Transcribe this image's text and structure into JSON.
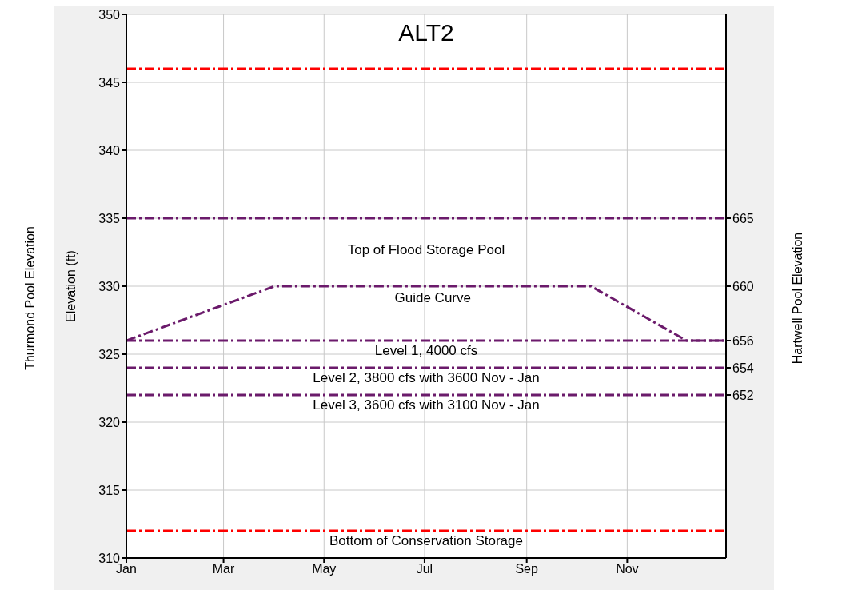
{
  "chart_data": {
    "type": "line",
    "title": "ALT2",
    "ylabel": "Elevation (ft)",
    "y2label": "Hartwell Pool Elevation",
    "annotations": [
      "Top of Flood Storage Pool",
      "Thurmond Pool Elevation"
    ],
    "series": [
      {
        "name": "Guide Curve",
        "color": "#6b1a6b",
        "x": [
          "--01-01",
          "--04-01",
          "--10-10",
          "--12-07",
          "--12-31"
        ],
        "values": [
          326,
          330,
          330,
          326,
          326
        ]
      }
    ],
    "xlim": [
      "--01-01",
      "--12-31"
    ],
    "xticks": [
      {
        "value": "--01-01",
        "label": "Jan"
      },
      {
        "value": "--03-01",
        "label": "Mar"
      },
      {
        "value": "--05-01",
        "label": "May"
      },
      {
        "value": "--07-01",
        "label": "Jul"
      },
      {
        "value": "--09-01",
        "label": "Sep"
      },
      {
        "value": "--11-01",
        "label": "Nov"
      }
    ],
    "ylim": [
      310,
      350
    ],
    "yticks": [
      310,
      315,
      320,
      325,
      330,
      335,
      340,
      345,
      350
    ],
    "y2lim": [
      640,
      680
    ],
    "y2ticks": [
      652,
      654,
      656,
      660,
      665
    ],
    "ref_lines": [
      {
        "axis": "y",
        "value": 346,
        "color": "#ff0000",
        "line_style": "dashed"
      },
      {
        "axis": "y",
        "value": 335,
        "color": "#6b1a6b",
        "line_style": "dashed"
      },
      {
        "axis": "y",
        "value": 326,
        "label": "Level 1, 4000 cfs",
        "color": "#6c1a6c",
        "line_style": "dashed"
      },
      {
        "axis": "y",
        "value": 324,
        "label": "Level 2, 3800 cfs with 3600 Nov - Jan",
        "color": "#6a1a6a",
        "line_style": "dashed"
      },
      {
        "axis": "y",
        "value": 322,
        "label": "Level 3, 3600 cfs with 3100 Nov - Jan",
        "color": "#6b1b6b",
        "line_style": "dashed"
      },
      {
        "axis": "y",
        "value": 312,
        "label": "Bottom of Conservation Storage",
        "color": "#fe0000",
        "line_style": "dashed"
      }
    ],
    "grid": true,
    "marker": "none",
    "line_style": "dashed"
  }
}
